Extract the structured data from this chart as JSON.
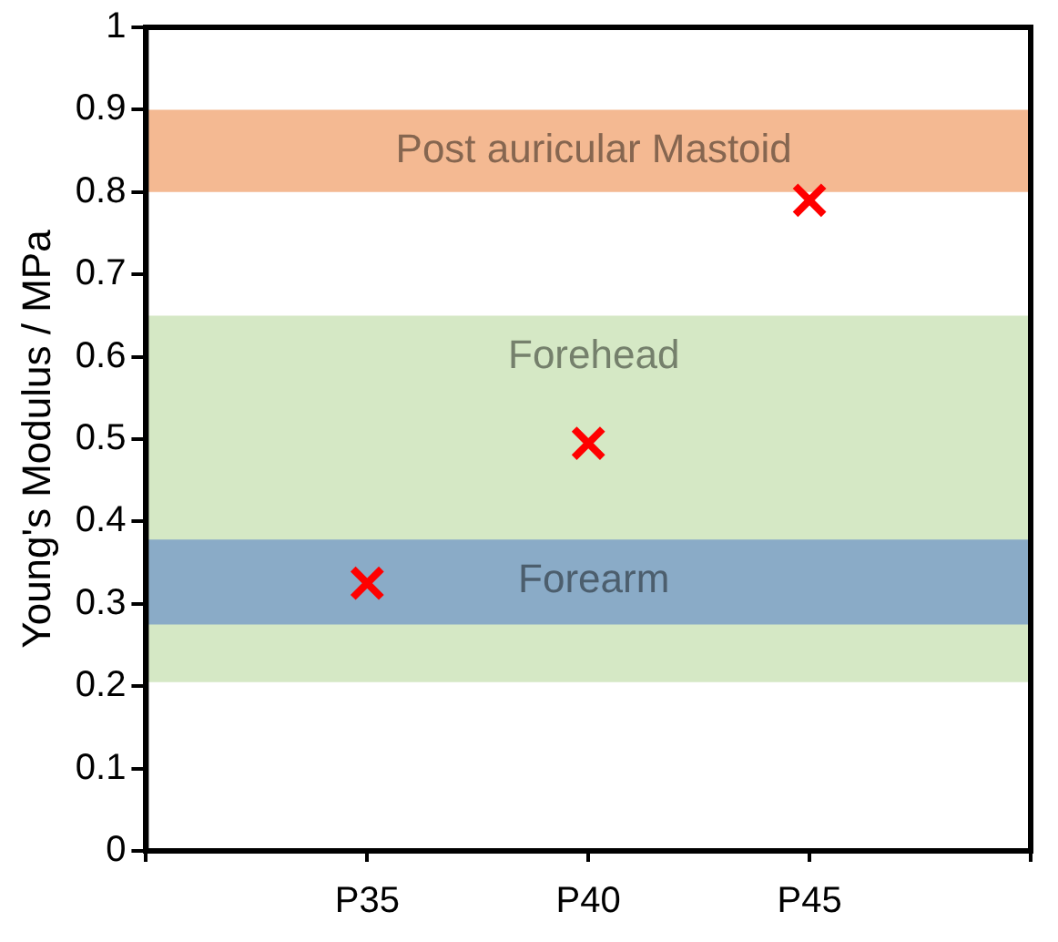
{
  "chart_data": {
    "type": "scatter",
    "ylabel": "Young's Modulus / MPa",
    "categories": [
      null,
      "P35",
      "P40",
      "P45",
      null
    ],
    "series": [
      {
        "color": "#ff0000",
        "values": [
          null,
          0.325,
          0.495,
          0.79,
          null
        ]
      }
    ],
    "marker": "cross",
    "ylim": [
      0,
      1
    ],
    "yticks": [
      0,
      0.1,
      0.2,
      0.3,
      0.4,
      0.5,
      0.6,
      0.7,
      0.8,
      0.9,
      1
    ],
    "grid": false,
    "legend": false,
    "bands": [
      {
        "axis": "y",
        "from": 0.8,
        "to": 0.9,
        "label": "Post auricular Mastoid",
        "color": "#f4b992"
      },
      {
        "axis": "y",
        "from": 0.205,
        "to": 0.65,
        "label": "Forehead",
        "color": "#d5e8c5"
      },
      {
        "axis": "y",
        "from": 0.275,
        "to": 0.378,
        "label": "Forearm",
        "color": "#8aabc7"
      }
    ]
  }
}
